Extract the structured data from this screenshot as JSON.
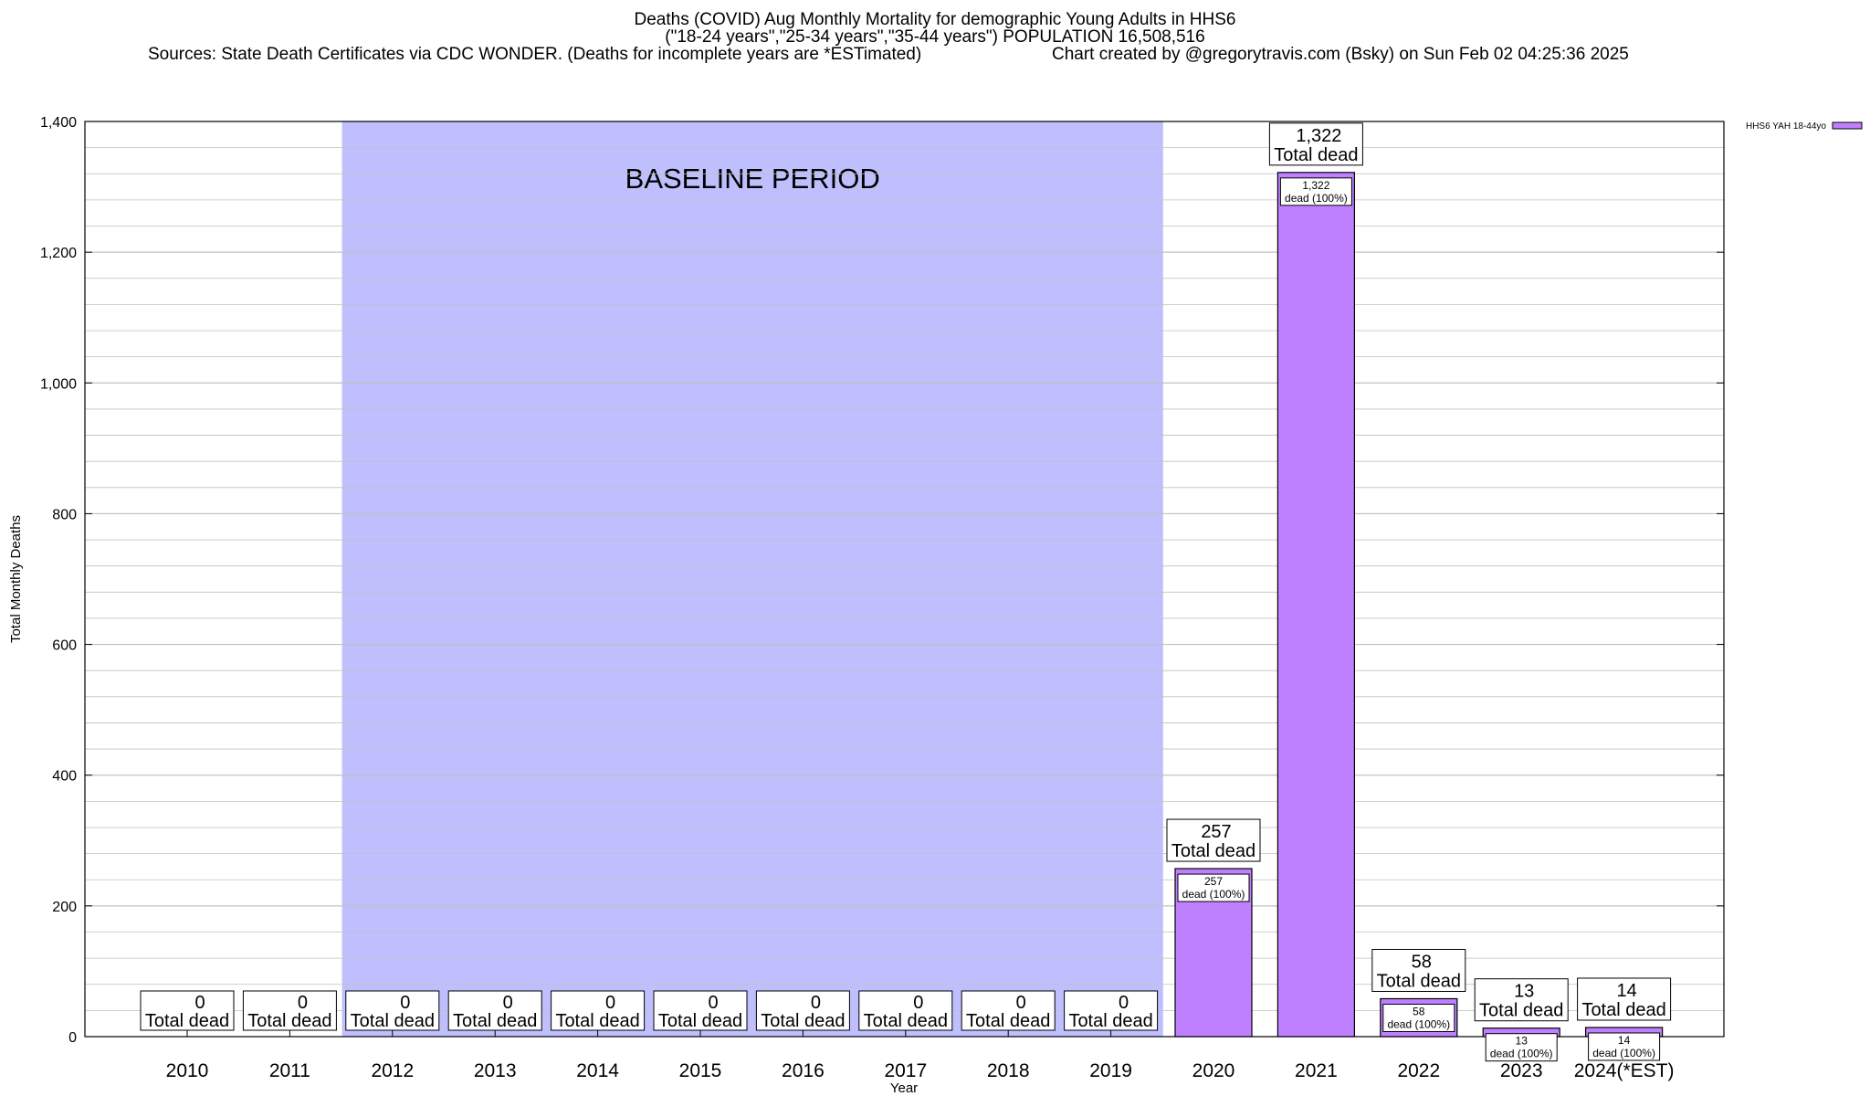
{
  "header": {
    "title": "Deaths (COVID) Aug Monthly Mortality for demographic Young Adults in HHS6",
    "subtitle": "(\"18-24 years\",\"25-34 years\",\"35-44 years\") POPULATION 16,508,516",
    "sources": "Sources: State Death Certificates via CDC WONDER. (Deaths for incomplete years are *ESTimated)",
    "credit": "Chart created by @gregorytravis.com (Bsky) on Sun Feb 02 04:25:36 2025"
  },
  "colors": {
    "bar": "#bf80ff",
    "baseline_band": "#bfbffd",
    "grid": "#c0c0c0"
  },
  "chart_data": {
    "type": "bar",
    "title": "Deaths (COVID) Aug Monthly Mortality for demographic Young Adults in HHS6",
    "xlabel": "Year",
    "ylabel": "Total Monthly Deaths",
    "ylim": [
      0,
      1400
    ],
    "yticks": [
      "0",
      "200",
      "400",
      "600",
      "800",
      "1,000",
      "1,200",
      "1,400"
    ],
    "grid": true,
    "legend": {
      "position": "top-right",
      "entries": [
        "HHS6 YAH 18-44yo"
      ]
    },
    "categories": [
      "2010",
      "2011",
      "2012",
      "2013",
      "2014",
      "2015",
      "2016",
      "2017",
      "2018",
      "2019",
      "2020",
      "2021",
      "2022",
      "2023",
      "2024(*EST)"
    ],
    "series": [
      {
        "name": "HHS6 YAH 18-44yo",
        "values": [
          0,
          0,
          0,
          0,
          0,
          0,
          0,
          0,
          0,
          0,
          257,
          1322,
          58,
          13,
          14
        ]
      }
    ],
    "total_labels": [
      "0",
      "0",
      "0",
      "0",
      "0",
      "0",
      "0",
      "0",
      "0",
      "0",
      "1,322",
      "257",
      "58",
      "13",
      "14"
    ],
    "total_labels_ordered": [
      "0",
      "0",
      "0",
      "0",
      "0",
      "0",
      "0",
      "0",
      "0",
      "0",
      "257",
      "1,322",
      "58",
      "13",
      "14"
    ],
    "total_caption": "Total dead",
    "inner_labels": [
      "257",
      "1,322",
      "58",
      "13",
      "14"
    ],
    "inner_caption": "dead (100%)",
    "baseline": {
      "label": "BASELINE PERIOD",
      "start": "2012",
      "end": "2019"
    }
  }
}
